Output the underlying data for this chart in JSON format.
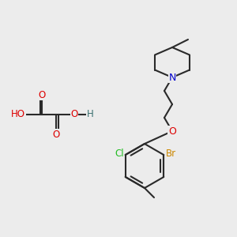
{
  "bg_color": "#ececec",
  "bond_color": "#2a2a2a",
  "bond_lw": 1.5,
  "atom_colors": {
    "O": "#dd0000",
    "N": "#0000cc",
    "Cl": "#22bb22",
    "Br": "#cc8800",
    "H": "#3a7070",
    "C": "#2a2a2a"
  },
  "font_size": 8.5,
  "figsize": [
    3.0,
    3.0
  ],
  "dpi": 100,
  "xlim": [
    0,
    300
  ],
  "ylim": [
    0,
    300
  ]
}
